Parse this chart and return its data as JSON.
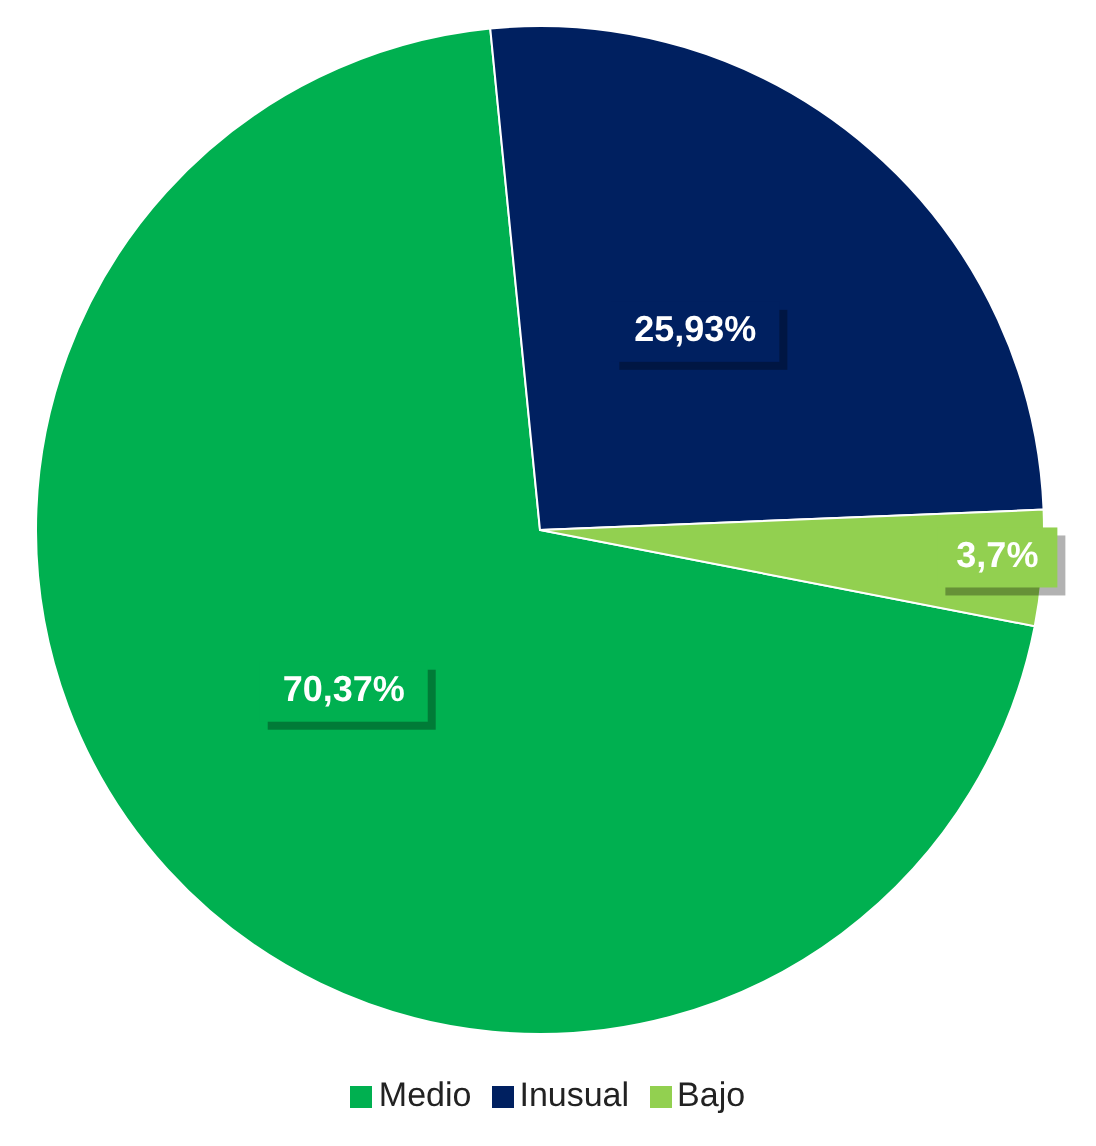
{
  "chart_data": {
    "type": "pie",
    "categories": [
      "Medio",
      "Inusual",
      "Bajo"
    ],
    "values": [
      70.37,
      25.93,
      3.7
    ],
    "colors": [
      "#00b050",
      "#002060",
      "#92d050"
    ],
    "value_labels": [
      "70,37%",
      "25,93%",
      "3,7%"
    ],
    "legend": "bottom"
  }
}
